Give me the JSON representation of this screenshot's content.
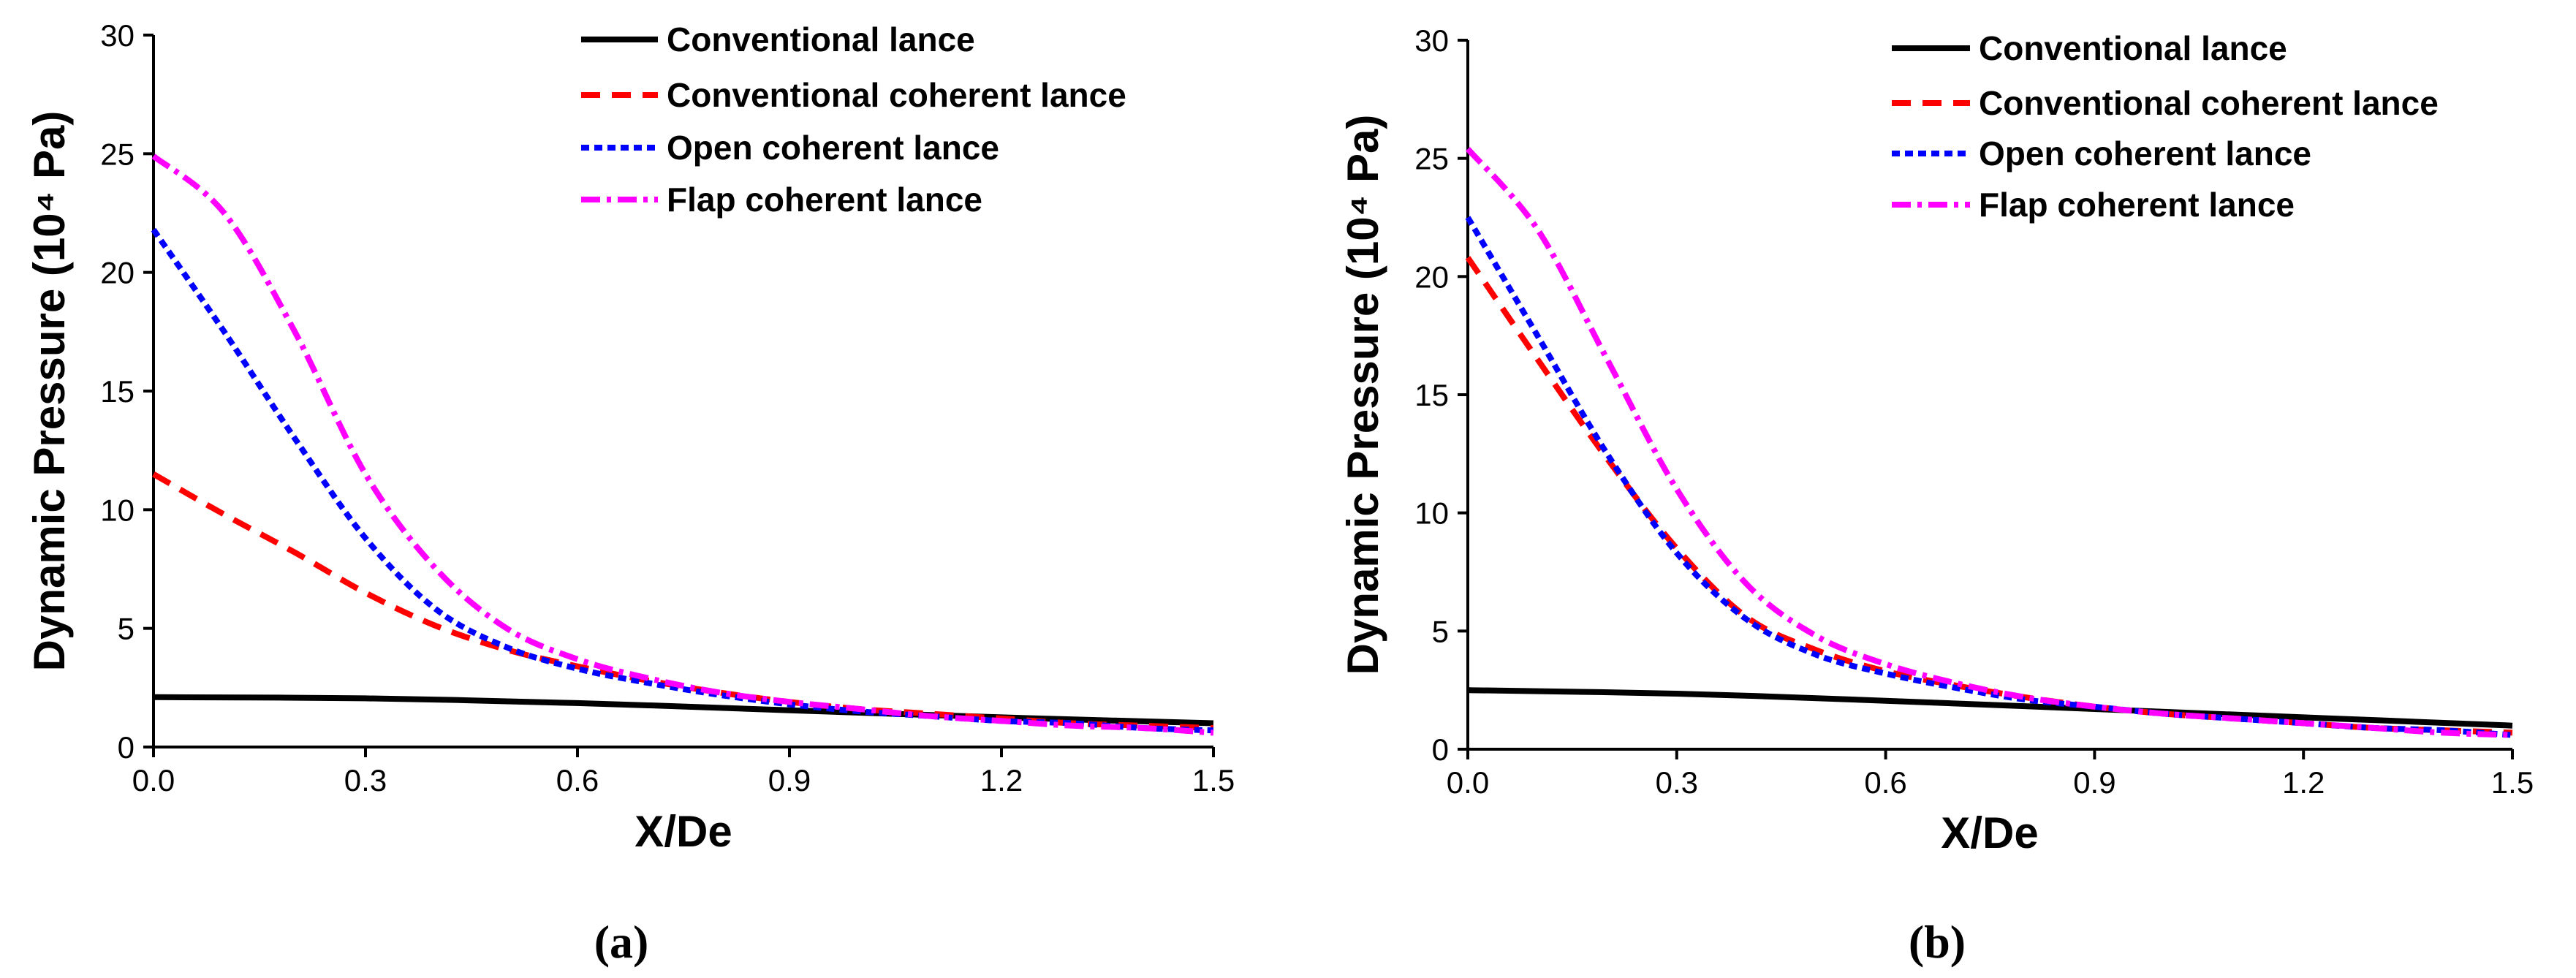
{
  "chart_data": [
    {
      "type": "line",
      "panel_label": "(a)",
      "xlabel": "X/De",
      "ylabel": "Dynamic Pressure (10⁴ Pa)",
      "xlim": [
        0,
        1.5
      ],
      "ylim": [
        0,
        30
      ],
      "x_ticks": [
        "0.0",
        "0.3",
        "0.6",
        "0.9",
        "1.2",
        "1.5"
      ],
      "y_ticks": [
        "0",
        "5",
        "10",
        "15",
        "20",
        "25",
        "30"
      ],
      "legend_position": "top-right",
      "series": [
        {
          "name": "Conventional lance",
          "color": "#000000",
          "style": "solid",
          "x": [
            0,
            0.3,
            0.6,
            0.9,
            1.2,
            1.5
          ],
          "y": [
            2.1,
            2.05,
            1.85,
            1.55,
            1.25,
            1.0
          ]
        },
        {
          "name": "Conventional coherent lance",
          "color": "#ff0000",
          "style": "dash",
          "x": [
            0,
            0.1,
            0.2,
            0.3,
            0.4,
            0.5,
            0.6,
            0.7,
            0.8,
            0.9,
            1.0,
            1.1,
            1.2,
            1.3,
            1.4,
            1.5
          ],
          "y": [
            11.5,
            9.8,
            8.2,
            6.5,
            5.1,
            4.1,
            3.4,
            2.8,
            2.3,
            1.9,
            1.6,
            1.4,
            1.2,
            1.0,
            0.9,
            0.8
          ]
        },
        {
          "name": "Open coherent lance",
          "color": "#0000ff",
          "style": "dot",
          "x": [
            0,
            0.1,
            0.2,
            0.3,
            0.4,
            0.5,
            0.6,
            0.7,
            0.8,
            0.9,
            1.0,
            1.1,
            1.2,
            1.3,
            1.4,
            1.5
          ],
          "y": [
            21.8,
            17.5,
            13.0,
            8.8,
            5.8,
            4.2,
            3.3,
            2.7,
            2.2,
            1.8,
            1.5,
            1.3,
            1.1,
            1.0,
            0.8,
            0.7
          ]
        },
        {
          "name": "Flap coherent lance",
          "color": "#ff00ff",
          "style": "dashdot",
          "x": [
            0,
            0.1,
            0.2,
            0.3,
            0.4,
            0.5,
            0.6,
            0.7,
            0.8,
            0.9,
            1.0,
            1.1,
            1.2,
            1.3,
            1.4,
            1.5
          ],
          "y": [
            24.9,
            22.5,
            17.5,
            11.5,
            7.5,
            5.0,
            3.7,
            2.9,
            2.3,
            1.9,
            1.6,
            1.3,
            1.1,
            0.9,
            0.8,
            0.6
          ]
        }
      ]
    },
    {
      "type": "line",
      "panel_label": "(b)",
      "xlabel": "X/De",
      "ylabel": "Dynamic Pressure (10⁴ Pa)",
      "xlim": [
        0,
        1.5
      ],
      "ylim": [
        0,
        30
      ],
      "x_ticks": [
        "0.0",
        "0.3",
        "0.6",
        "0.9",
        "1.2",
        "1.5"
      ],
      "y_ticks": [
        "0",
        "5",
        "10",
        "15",
        "20",
        "25",
        "30"
      ],
      "legend_position": "top-right",
      "series": [
        {
          "name": "Conventional lance",
          "color": "#000000",
          "style": "solid",
          "x": [
            0,
            0.3,
            0.6,
            0.9,
            1.2,
            1.5
          ],
          "y": [
            2.5,
            2.35,
            2.05,
            1.7,
            1.35,
            1.0
          ]
        },
        {
          "name": "Conventional coherent lance",
          "color": "#ff0000",
          "style": "dash",
          "x": [
            0,
            0.1,
            0.2,
            0.3,
            0.4,
            0.5,
            0.6,
            0.7,
            0.8,
            0.9,
            1.0,
            1.1,
            1.2,
            1.3,
            1.4,
            1.5
          ],
          "y": [
            20.8,
            16.5,
            12.3,
            8.5,
            5.6,
            4.2,
            3.3,
            2.7,
            2.2,
            1.8,
            1.5,
            1.3,
            1.1,
            0.9,
            0.8,
            0.7
          ]
        },
        {
          "name": "Open coherent lance",
          "color": "#0000ff",
          "style": "dot",
          "x": [
            0,
            0.1,
            0.2,
            0.3,
            0.4,
            0.5,
            0.6,
            0.7,
            0.8,
            0.9,
            1.0,
            1.1,
            1.2,
            1.3,
            1.4,
            1.5
          ],
          "y": [
            22.5,
            17.5,
            12.5,
            8.3,
            5.5,
            4.0,
            3.2,
            2.6,
            2.1,
            1.8,
            1.5,
            1.3,
            1.1,
            0.9,
            0.8,
            0.6
          ]
        },
        {
          "name": "Flap coherent lance",
          "color": "#ff00ff",
          "style": "dashdot",
          "x": [
            0,
            0.1,
            0.2,
            0.3,
            0.4,
            0.5,
            0.6,
            0.7,
            0.8,
            0.9,
            1.0,
            1.1,
            1.2,
            1.3,
            1.4,
            1.5
          ],
          "y": [
            25.4,
            22.0,
            16.5,
            11.0,
            7.0,
            4.8,
            3.6,
            2.8,
            2.2,
            1.8,
            1.5,
            1.3,
            1.1,
            0.9,
            0.7,
            0.6
          ]
        }
      ]
    }
  ]
}
